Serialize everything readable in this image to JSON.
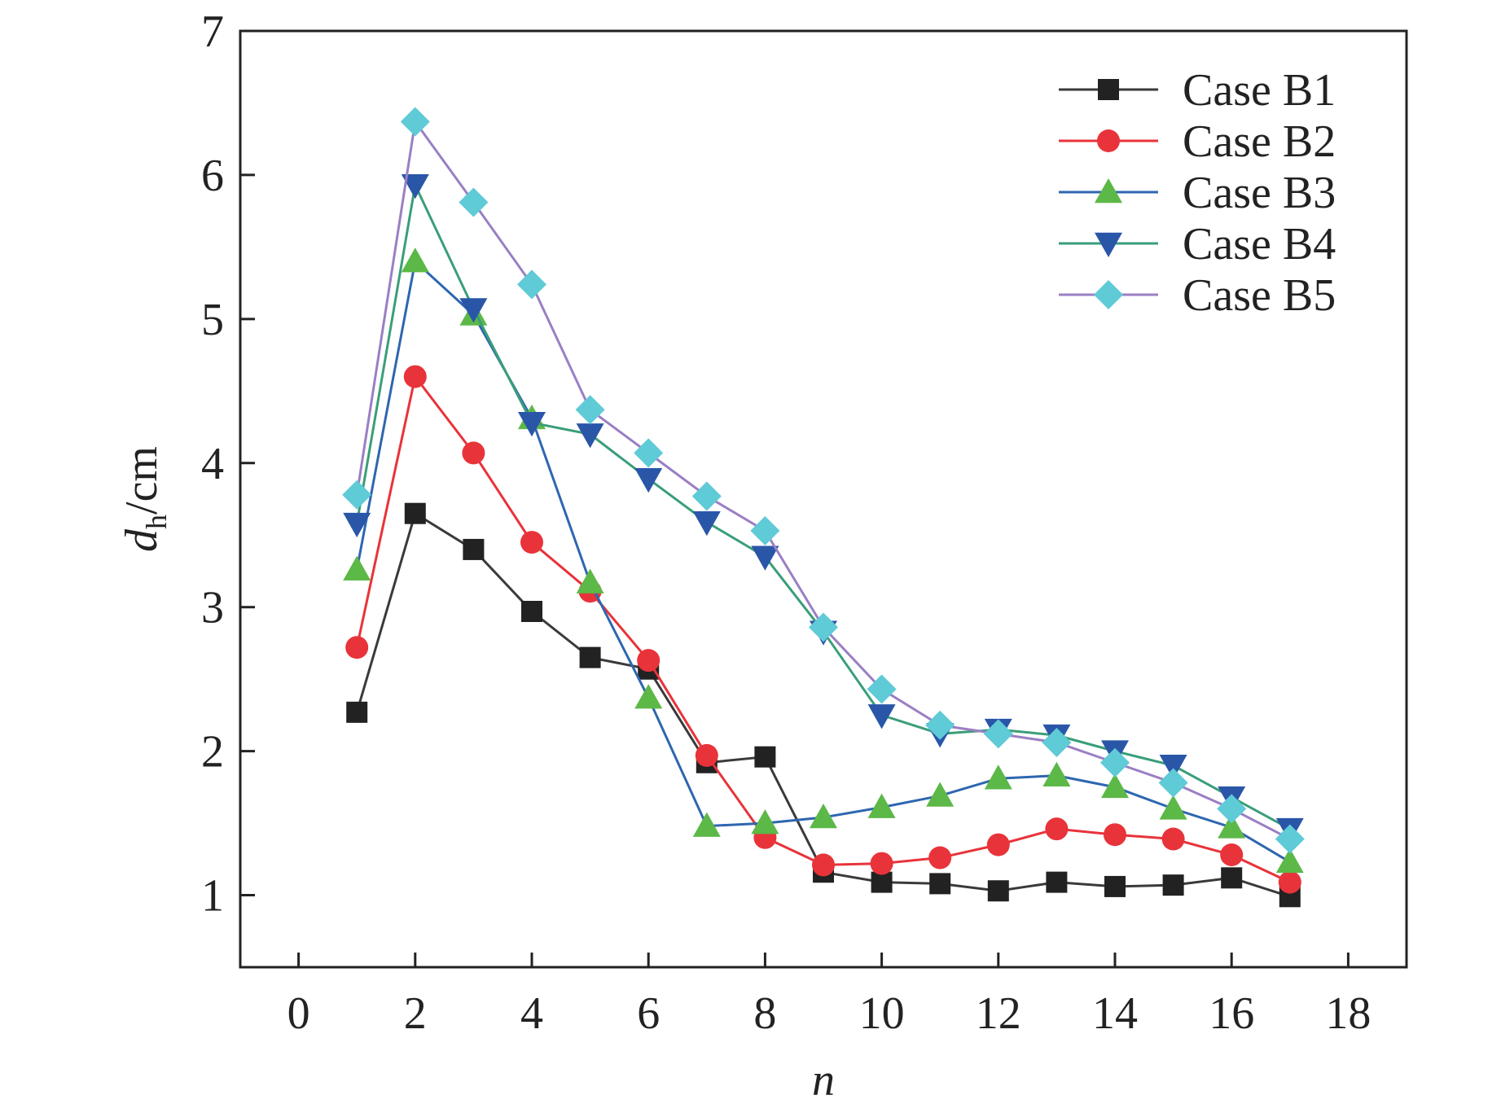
{
  "chart_data": {
    "type": "line",
    "title": "",
    "xlabel": "n",
    "ylabel": {
      "main": "d",
      "sub": "h",
      "unit": "/cm"
    },
    "xlim": [
      -1,
      19
    ],
    "ylim": [
      0.5,
      7
    ],
    "xticks": [
      0,
      2,
      4,
      6,
      8,
      10,
      12,
      14,
      16,
      18
    ],
    "yticks": [
      1,
      2,
      3,
      4,
      5,
      6,
      7
    ],
    "grid": false,
    "legend_position": "top-right",
    "x": [
      1,
      2,
      3,
      4,
      5,
      6,
      7,
      8,
      9,
      10,
      11,
      12,
      13,
      14,
      15,
      16,
      17
    ],
    "series": [
      {
        "name": "Case B1",
        "marker": "square",
        "line_color": "#3a3a3a",
        "marker_color": "#222222",
        "values": [
          2.27,
          3.65,
          3.4,
          2.97,
          2.65,
          2.57,
          1.92,
          1.96,
          1.16,
          1.09,
          1.08,
          1.03,
          1.09,
          1.06,
          1.07,
          1.12,
          0.99
        ]
      },
      {
        "name": "Case B2",
        "marker": "circle",
        "line_color": "#e8333a",
        "marker_color": "#e8333a",
        "values": [
          2.72,
          4.6,
          4.07,
          3.45,
          3.11,
          2.63,
          1.97,
          1.4,
          1.21,
          1.22,
          1.26,
          1.35,
          1.46,
          1.42,
          1.39,
          1.28,
          1.09
        ]
      },
      {
        "name": "Case B3",
        "marker": "triangle-up",
        "line_color": "#2e66b0",
        "marker_color": "#5cb847",
        "values": [
          3.26,
          5.4,
          5.03,
          4.31,
          3.17,
          2.37,
          1.48,
          1.5,
          1.54,
          1.61,
          1.69,
          1.81,
          1.83,
          1.75,
          1.6,
          1.47,
          1.23
        ]
      },
      {
        "name": "Case B4",
        "marker": "triangle-down",
        "line_color": "#3a9e78",
        "marker_color": "#2a56a8",
        "values": [
          3.58,
          5.93,
          5.07,
          4.28,
          4.2,
          3.89,
          3.59,
          3.35,
          2.83,
          2.25,
          2.12,
          2.15,
          2.11,
          2.0,
          1.9,
          1.68,
          1.46
        ]
      },
      {
        "name": "Case B5",
        "marker": "diamond",
        "line_color": "#9a7fc4",
        "marker_color": "#5ecbd6",
        "values": [
          3.78,
          6.37,
          5.81,
          5.24,
          4.37,
          4.07,
          3.77,
          3.53,
          2.86,
          2.43,
          2.18,
          2.12,
          2.06,
          1.92,
          1.78,
          1.6,
          1.39
        ]
      }
    ]
  }
}
